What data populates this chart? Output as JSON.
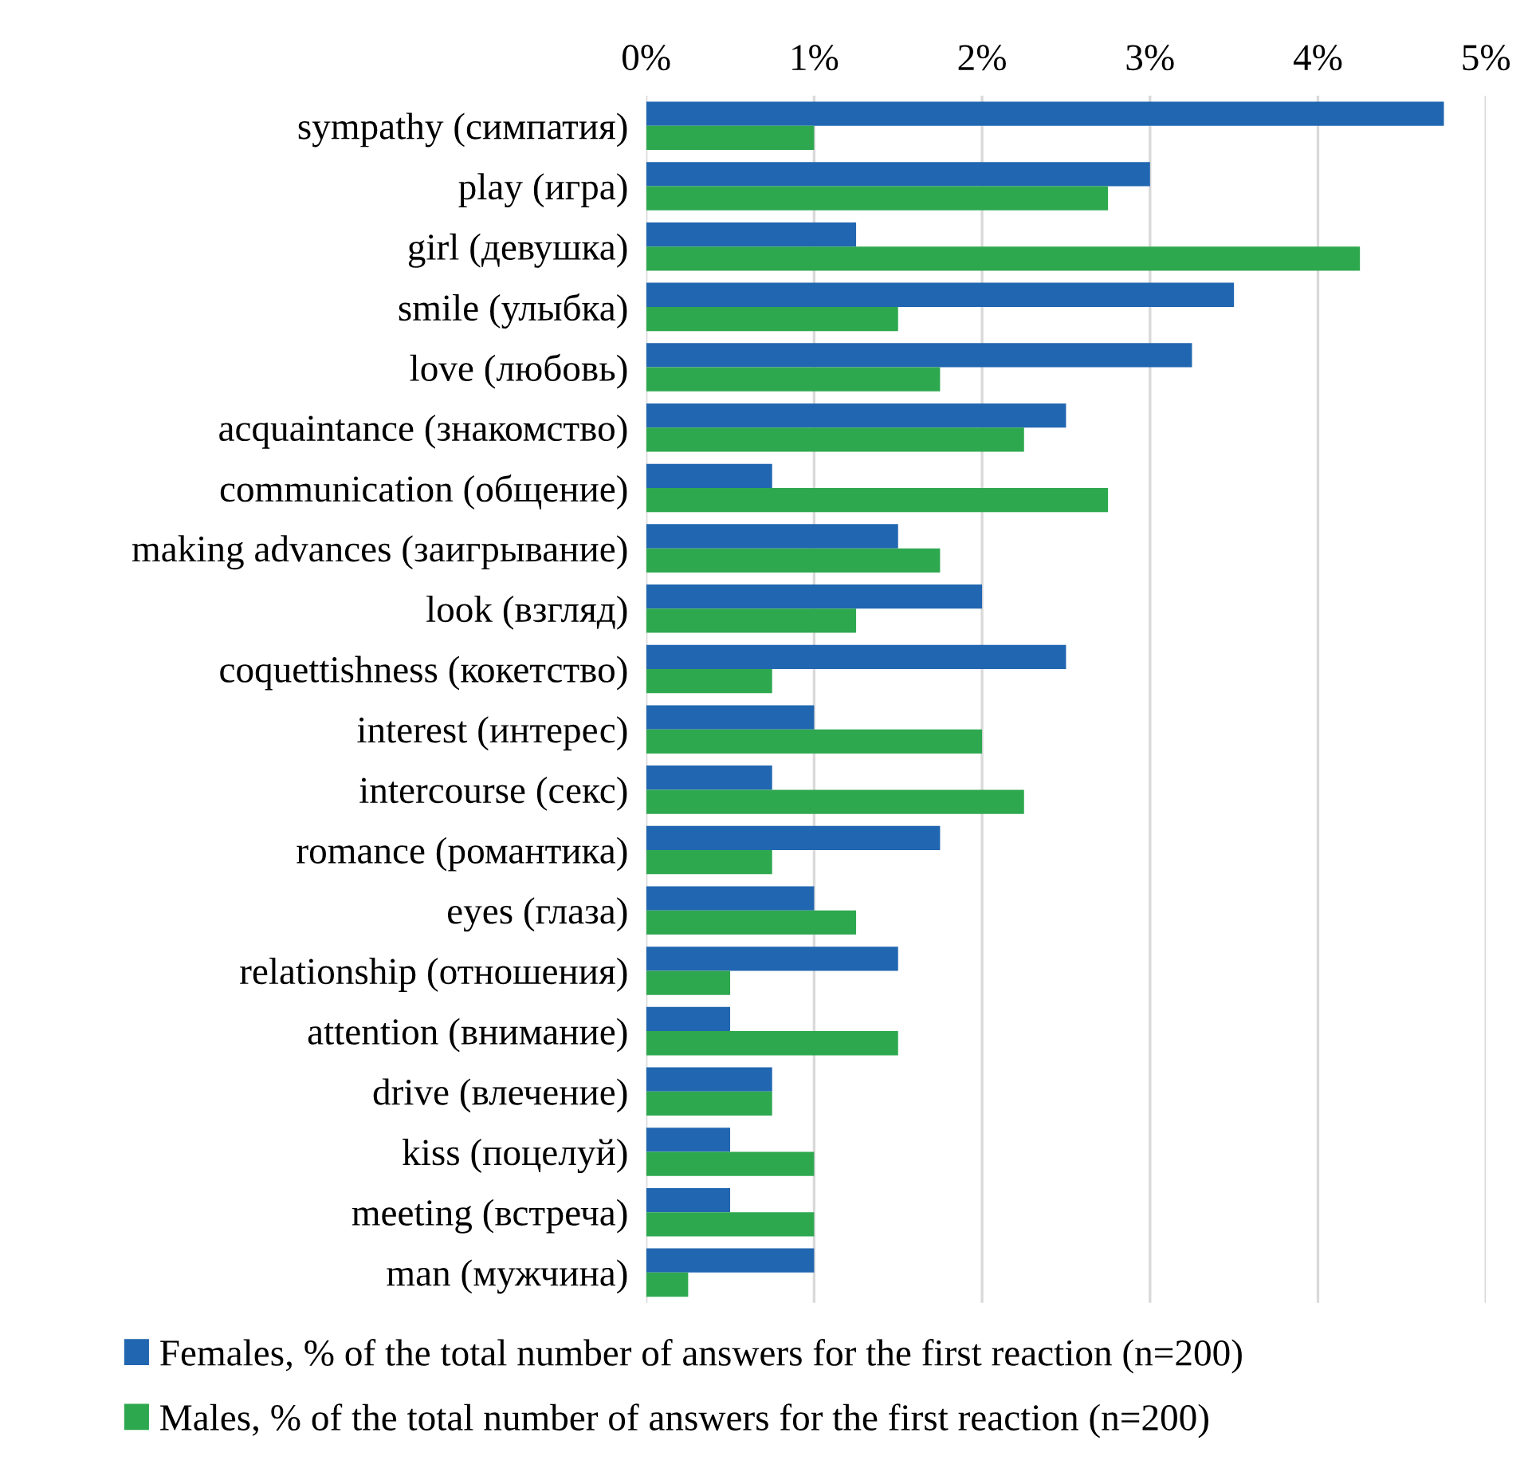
{
  "chart_data": {
    "type": "bar",
    "orientation": "horizontal",
    "categories": [
      "sympathy (симпатия)",
      "play (игра)",
      "girl (девушка)",
      "smile (улыбка)",
      "love (любовь)",
      "acquaintance (знакомство)",
      "communication (общение)",
      "making advances (заигрывание)",
      "look (взгляд)",
      "coquettishness (кокетство)",
      "interest (интерес)",
      "intercourse (секс)",
      "romance (романтика)",
      "eyes (глаза)",
      "relationship (отношения)",
      "attention (внимание)",
      "drive (влечение)",
      "kiss (поцелуй)",
      "meeting (встреча)",
      "man (мужчина)"
    ],
    "series": [
      {
        "name": "Females, % of the total number of answers for the first reaction (n=200)",
        "color": "#2166b0",
        "values": [
          4.75,
          3.0,
          1.25,
          3.5,
          3.25,
          2.5,
          0.75,
          1.5,
          2.0,
          2.5,
          1.0,
          0.75,
          1.75,
          1.0,
          1.5,
          0.5,
          0.75,
          0.5,
          0.5,
          1.0
        ]
      },
      {
        "name": "Males, % of the total number of answers for the first reaction (n=200)",
        "color": "#2ea84f",
        "values": [
          1.0,
          2.75,
          4.25,
          1.5,
          1.75,
          2.25,
          2.75,
          1.75,
          1.25,
          0.75,
          2.0,
          2.25,
          0.75,
          1.25,
          0.5,
          1.5,
          0.75,
          1.0,
          1.0,
          0.25
        ]
      }
    ],
    "xlim": [
      0,
      5
    ],
    "xticks": [
      {
        "value": 0,
        "label": "0%"
      },
      {
        "value": 1,
        "label": "1%"
      },
      {
        "value": 2,
        "label": "2%"
      },
      {
        "value": 3,
        "label": "3%"
      },
      {
        "value": 4,
        "label": "4%"
      },
      {
        "value": 5,
        "label": "5%"
      }
    ],
    "grid": "x",
    "legend": "bottom"
  }
}
